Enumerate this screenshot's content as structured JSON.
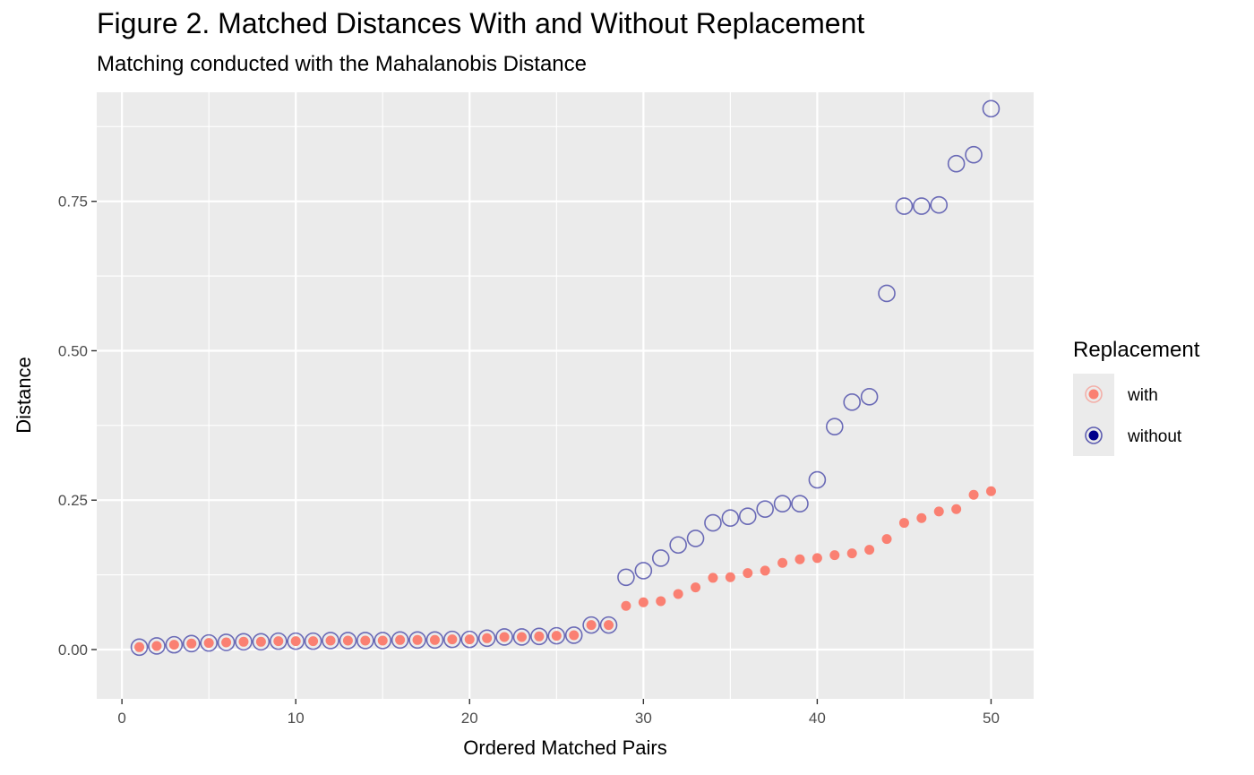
{
  "chart_data": {
    "type": "scatter",
    "title": "Figure 2. Matched Distances With and Without Replacement",
    "subtitle": "Matching conducted with the Mahalanobis Distance",
    "xlabel": "Ordered Matched Pairs",
    "ylabel": "Distance",
    "xlim": [
      -1.45,
      52.45
    ],
    "ylim": [
      -0.0825,
      0.9325
    ],
    "x_ticks": [
      0,
      10,
      20,
      30,
      40,
      50
    ],
    "x_tick_labels": [
      "0",
      "10",
      "20",
      "30",
      "40",
      "50"
    ],
    "y_ticks": [
      0,
      0.25,
      0.5,
      0.75
    ],
    "y_tick_labels": [
      "0.00",
      "0.25",
      "0.50",
      "0.75"
    ],
    "grid": true,
    "legend": {
      "title": "Replacement",
      "placement": "right",
      "entries": [
        "with",
        "without"
      ]
    },
    "x": [
      1,
      2,
      3,
      4,
      5,
      6,
      7,
      8,
      9,
      10,
      11,
      12,
      13,
      14,
      15,
      16,
      17,
      18,
      19,
      20,
      21,
      22,
      23,
      24,
      25,
      26,
      27,
      28,
      29,
      30,
      31,
      32,
      33,
      34,
      35,
      36,
      37,
      38,
      39,
      40,
      41,
      42,
      43,
      44,
      45,
      46,
      47,
      48,
      49,
      50
    ],
    "series": [
      {
        "name": "with",
        "color": "#fa8072",
        "marker": "filled-circle",
        "values": [
          0.004,
          0.006,
          0.008,
          0.01,
          0.011,
          0.012,
          0.013,
          0.013,
          0.014,
          0.014,
          0.014,
          0.015,
          0.015,
          0.015,
          0.015,
          0.016,
          0.016,
          0.016,
          0.017,
          0.017,
          0.019,
          0.021,
          0.021,
          0.022,
          0.023,
          0.024,
          0.041,
          0.041,
          0.073,
          0.079,
          0.081,
          0.093,
          0.104,
          0.12,
          0.121,
          0.128,
          0.132,
          0.145,
          0.151,
          0.153,
          0.158,
          0.161,
          0.167,
          0.185,
          0.212,
          0.22,
          0.231,
          0.235,
          0.259,
          0.265
        ]
      },
      {
        "name": "without",
        "color": "#00008b",
        "marker": "open-circle",
        "values": [
          0.004,
          0.006,
          0.008,
          0.01,
          0.011,
          0.012,
          0.013,
          0.013,
          0.014,
          0.014,
          0.014,
          0.015,
          0.015,
          0.015,
          0.015,
          0.016,
          0.016,
          0.016,
          0.017,
          0.017,
          0.019,
          0.021,
          0.021,
          0.022,
          0.023,
          0.024,
          0.041,
          0.041,
          0.121,
          0.132,
          0.153,
          0.175,
          0.186,
          0.212,
          0.22,
          0.223,
          0.235,
          0.244,
          0.244,
          0.284,
          0.373,
          0.414,
          0.423,
          0.596,
          0.742,
          0.742,
          0.744,
          0.813,
          0.828,
          0.905
        ]
      }
    ]
  }
}
